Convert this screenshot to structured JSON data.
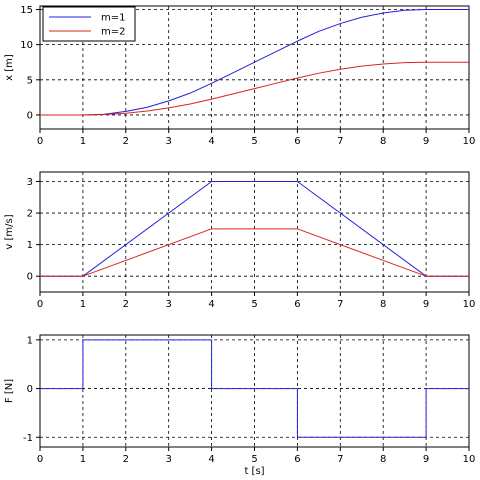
{
  "colors": {
    "m1": "#2222dd",
    "m2": "#dd2222",
    "force": "#2222dd",
    "grid": "#000000",
    "axis": "#000000"
  },
  "chart_data": [
    {
      "type": "line",
      "xlabel": "",
      "ylabel": "x [m]",
      "xlim": [
        0,
        10
      ],
      "ylim": [
        -2,
        15.5
      ],
      "xticks": [
        "0",
        "1",
        "2",
        "3",
        "4",
        "5",
        "6",
        "7",
        "8",
        "9",
        "10"
      ],
      "yticks": [
        {
          "value": 0,
          "label": "0"
        },
        {
          "value": 5,
          "label": "5"
        },
        {
          "value": 10,
          "label": "10"
        },
        {
          "value": 15,
          "label": "15"
        }
      ],
      "grid": true,
      "legend": {
        "position": "top-left",
        "entries": [
          "m=1",
          "m=2"
        ]
      },
      "series": [
        {
          "name": "m=1",
          "color_key": "m1",
          "x": [
            0,
            1,
            1.5,
            2,
            2.5,
            3,
            3.5,
            4,
            4.5,
            5,
            5.5,
            6,
            6.5,
            7,
            7.5,
            8,
            8.5,
            9,
            10
          ],
          "y": [
            0,
            0,
            0.1,
            0.5,
            1.1,
            2.0,
            3.1,
            4.5,
            6.0,
            7.5,
            9.0,
            10.5,
            11.9,
            13.0,
            13.9,
            14.5,
            14.9,
            15,
            15
          ]
        },
        {
          "name": "m=2",
          "color_key": "m2",
          "x": [
            0,
            1,
            1.5,
            2,
            2.5,
            3,
            3.5,
            4,
            4.5,
            5,
            5.5,
            6,
            6.5,
            7,
            7.5,
            8,
            8.5,
            9,
            10
          ],
          "y": [
            0,
            0,
            0.06,
            0.25,
            0.56,
            1.0,
            1.56,
            2.25,
            3.0,
            3.75,
            4.5,
            5.25,
            5.94,
            6.5,
            6.94,
            7.25,
            7.44,
            7.5,
            7.5
          ]
        }
      ]
    },
    {
      "type": "line",
      "xlabel": "",
      "ylabel": "v [m/s]",
      "xlim": [
        0,
        10
      ],
      "ylim": [
        -0.5,
        3.3
      ],
      "xticks": [
        "0",
        "1",
        "2",
        "3",
        "4",
        "5",
        "6",
        "7",
        "8",
        "9",
        "10"
      ],
      "yticks": [
        {
          "value": 0,
          "label": "0"
        },
        {
          "value": 1,
          "label": "1"
        },
        {
          "value": 2,
          "label": "2"
        },
        {
          "value": 3,
          "label": "3"
        }
      ],
      "grid": true,
      "series": [
        {
          "color_key": "m1",
          "x": [
            0,
            1,
            4,
            6,
            9,
            10
          ],
          "y": [
            0,
            0,
            3,
            3,
            0,
            0
          ]
        },
        {
          "color_key": "m2",
          "x": [
            0,
            1,
            4,
            6,
            9,
            10
          ],
          "y": [
            0,
            0,
            1.5,
            1.5,
            0,
            0
          ]
        }
      ]
    },
    {
      "type": "line",
      "xlabel": "t [s]",
      "ylabel": "F [N]",
      "xlim": [
        0,
        10
      ],
      "ylim": [
        -1.2,
        1.1
      ],
      "xticks": [
        "0",
        "1",
        "2",
        "3",
        "4",
        "5",
        "6",
        "7",
        "8",
        "9",
        "10"
      ],
      "yticks": [
        {
          "value": -1,
          "label": "-1"
        },
        {
          "value": 0,
          "label": "0"
        },
        {
          "value": 1,
          "label": "1"
        }
      ],
      "grid": true,
      "series": [
        {
          "color_key": "force",
          "x": [
            0,
            1,
            1,
            4,
            4,
            6,
            6,
            9,
            9,
            10
          ],
          "y": [
            0,
            0,
            1,
            1,
            0,
            0,
            -1,
            -1,
            0,
            0
          ]
        }
      ]
    }
  ]
}
